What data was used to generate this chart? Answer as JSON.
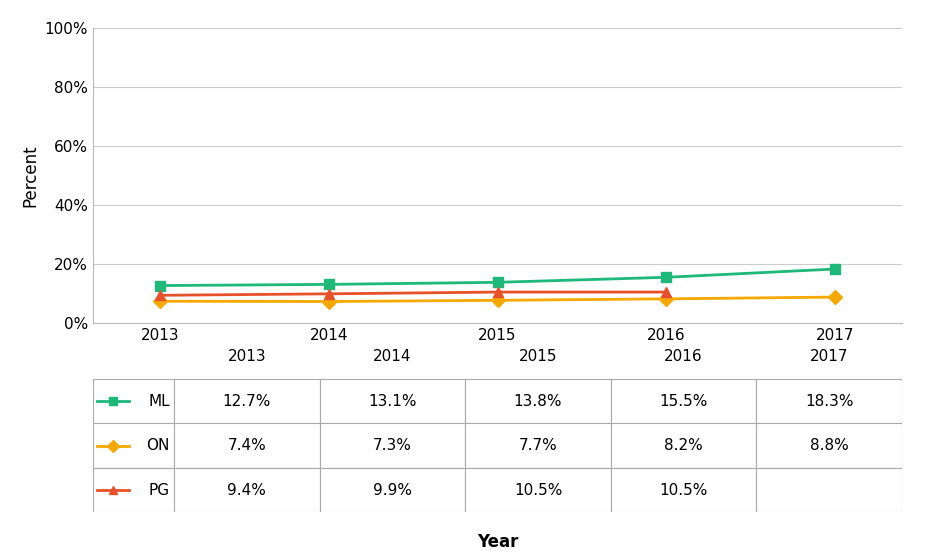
{
  "xlabel": "Year",
  "ylabel": "Percent",
  "years": [
    2013,
    2014,
    2015,
    2016,
    2017
  ],
  "series": [
    {
      "label": "ML",
      "color": "#1db87a",
      "marker": "s",
      "values": [
        12.7,
        13.1,
        13.8,
        15.5,
        18.3
      ],
      "display": [
        "12.7%",
        "13.1%",
        "13.8%",
        "15.5%",
        "18.3%"
      ]
    },
    {
      "label": "ON",
      "color": "#f5a800",
      "marker": "D",
      "values": [
        7.4,
        7.3,
        7.7,
        8.2,
        8.8
      ],
      "display": [
        "7.4%",
        "7.3%",
        "7.7%",
        "8.2%",
        "8.8%"
      ]
    },
    {
      "label": "PG",
      "color": "#e8502a",
      "marker": "^",
      "values": [
        9.4,
        9.9,
        10.5,
        10.5,
        null
      ],
      "display": [
        "9.4%",
        "9.9%",
        "10.5%",
        "10.5%",
        ""
      ]
    }
  ],
  "ylim": [
    0,
    100
  ],
  "yticks": [
    0,
    20,
    40,
    60,
    80,
    100
  ],
  "ytick_labels": [
    "0%",
    "20%",
    "40%",
    "60%",
    "80%",
    "100%"
  ],
  "grid_color": "#cccccc",
  "table_border_color": "#aaaaaa",
  "fig_width": 9.3,
  "fig_height": 5.57
}
